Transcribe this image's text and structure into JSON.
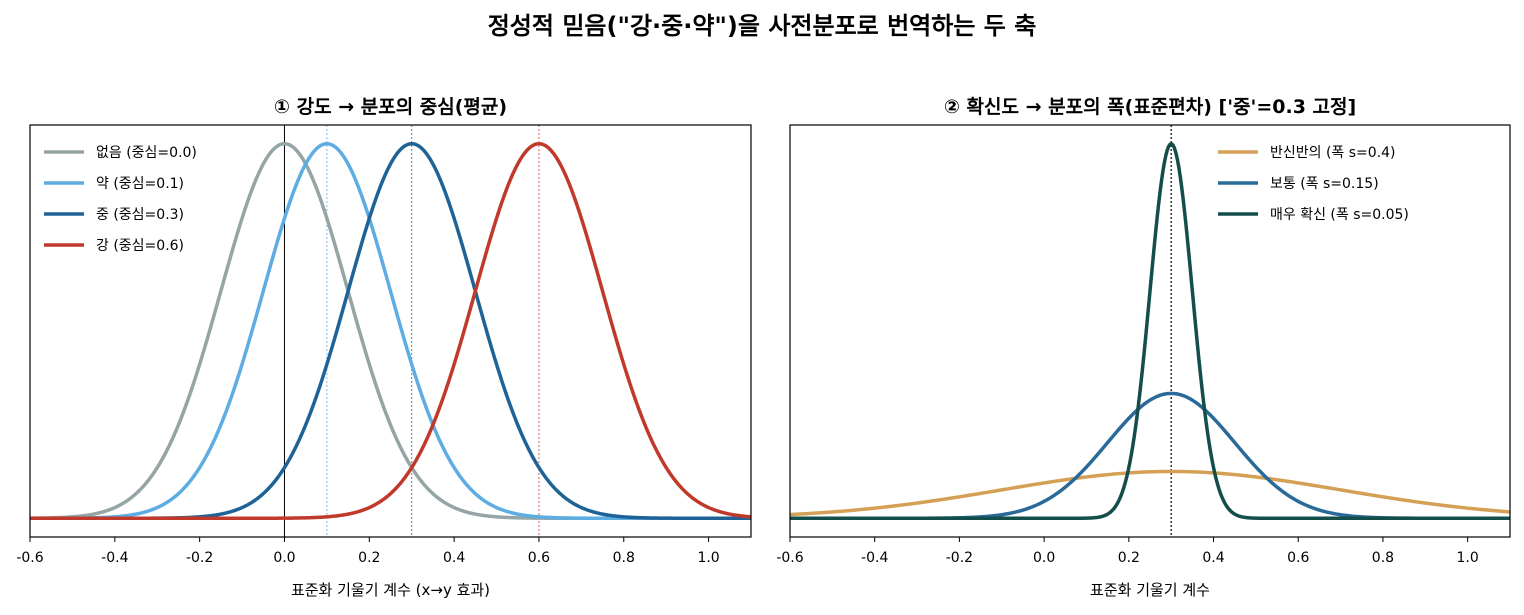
{
  "suptitle": "정성적 믿음(\"강·중·약\")을 사전분포로 번역하는 두 축",
  "chart_data": [
    {
      "type": "line",
      "title": "① 강도 → 분포의 중심(평균)",
      "xlabel": "표준화 기울기 계수 (x→y 효과)",
      "ylabel": "",
      "xlim": [
        -0.6,
        1.1
      ],
      "xticks": [
        "-0.6",
        "-0.4",
        "-0.2",
        "0.0",
        "0.2",
        "0.4",
        "0.6",
        "0.8",
        "1.0"
      ],
      "y_ticks_shown": false,
      "curve_kind": "normal density",
      "vline_at_zero": true,
      "legend_position": "top-left",
      "series": [
        {
          "name": "없음  (중심=0.0)",
          "mean": 0.0,
          "sd": 0.15,
          "color": "#95a5a6"
        },
        {
          "name": "약  (중심=0.1)",
          "mean": 0.1,
          "sd": 0.15,
          "color": "#5dade2"
        },
        {
          "name": "중  (중심=0.3)",
          "mean": 0.3,
          "sd": 0.15,
          "color": "#1f6396"
        },
        {
          "name": "강  (중심=0.6)",
          "mean": 0.6,
          "sd": 0.15,
          "color": "#c0392b"
        }
      ]
    },
    {
      "type": "line",
      "title": "② 확신도 → 분포의 폭(표준편차)  ['중'=0.3 고정]",
      "xlabel": "표준화 기울기 계수",
      "ylabel": "",
      "xlim": [
        -0.6,
        1.1
      ],
      "xticks": [
        "-0.6",
        "-0.4",
        "-0.2",
        "0.0",
        "0.2",
        "0.4",
        "0.6",
        "0.8",
        "1.0"
      ],
      "y_ticks_shown": false,
      "curve_kind": "normal density",
      "vline_at": 0.3,
      "legend_position": "top-right",
      "series": [
        {
          "name": "반신반의  (폭 s=0.4)",
          "mean": 0.3,
          "sd": 0.4,
          "color": "#d4a056"
        },
        {
          "name": "보통  (폭 s=0.15)",
          "mean": 0.3,
          "sd": 0.15,
          "color": "#2a6a99"
        },
        {
          "name": "매우 확신  (폭 s=0.05)",
          "mean": 0.3,
          "sd": 0.05,
          "color": "#134e4a"
        }
      ]
    }
  ]
}
